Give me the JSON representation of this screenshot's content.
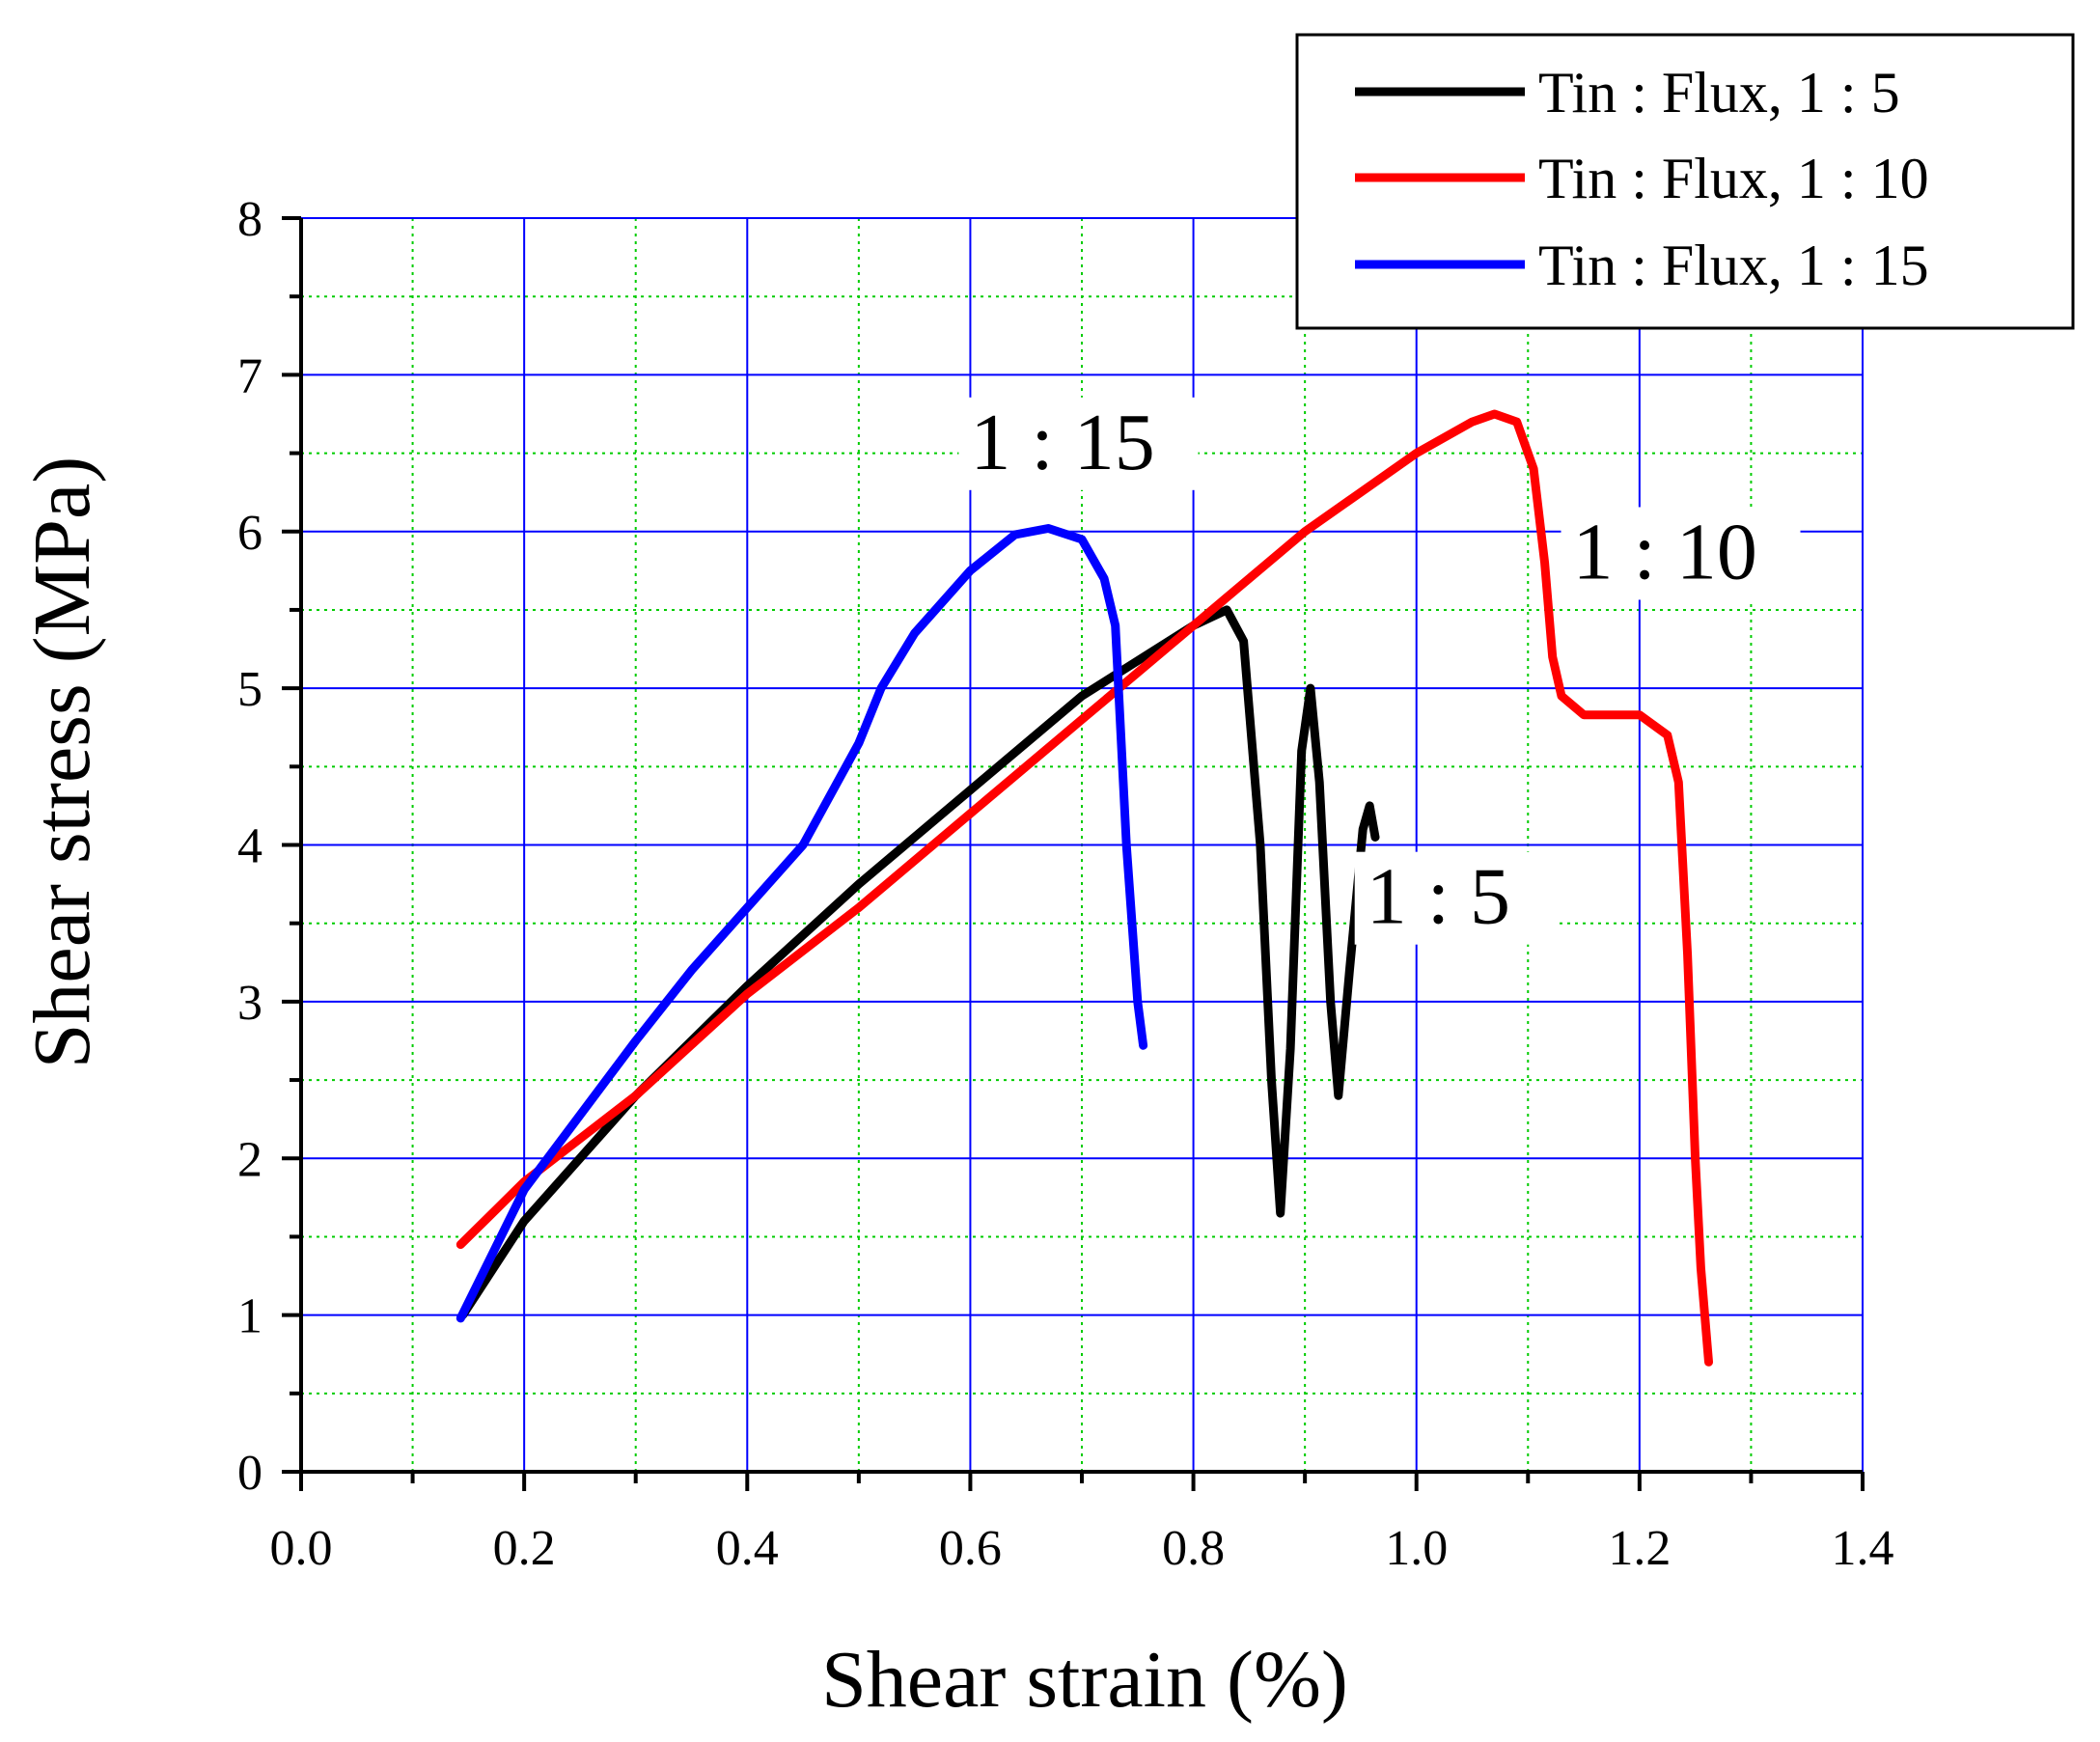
{
  "chart_data": {
    "type": "line",
    "title": "",
    "xlabel": "Shear strain (%)",
    "ylabel": "Shear stress (MPa)",
    "xlim": [
      0.0,
      1.4
    ],
    "ylim": [
      0,
      8
    ],
    "x_ticks": [
      0.0,
      0.2,
      0.4,
      0.6,
      0.8,
      1.0,
      1.2,
      1.4
    ],
    "x_tick_labels": [
      "0.0",
      "0.2",
      "0.4",
      "0.6",
      "0.8",
      "1.0",
      "1.2",
      "1.4"
    ],
    "y_ticks": [
      0,
      1,
      2,
      3,
      4,
      5,
      6,
      7,
      8
    ],
    "y_tick_labels": [
      "0",
      "1",
      "2",
      "3",
      "4",
      "5",
      "6",
      "7",
      "8"
    ],
    "grid": "major blue solid, minor green dotted",
    "legend_position": "top-right",
    "series": [
      {
        "name": "Tin : Flux, 1 : 5",
        "color": "#000000",
        "points": [
          [
            0.145,
            1.0
          ],
          [
            0.2,
            1.6
          ],
          [
            0.3,
            2.4
          ],
          [
            0.4,
            3.1
          ],
          [
            0.5,
            3.75
          ],
          [
            0.6,
            4.35
          ],
          [
            0.7,
            4.95
          ],
          [
            0.8,
            5.4
          ],
          [
            0.83,
            5.5
          ],
          [
            0.845,
            5.3
          ],
          [
            0.86,
            4.0
          ],
          [
            0.87,
            2.5
          ],
          [
            0.878,
            1.65
          ],
          [
            0.887,
            2.7
          ],
          [
            0.897,
            4.6
          ],
          [
            0.905,
            5.0
          ],
          [
            0.913,
            4.4
          ],
          [
            0.923,
            3.0
          ],
          [
            0.93,
            2.4
          ],
          [
            0.94,
            3.2
          ],
          [
            0.952,
            4.1
          ],
          [
            0.958,
            4.25
          ],
          [
            0.963,
            4.05
          ]
        ]
      },
      {
        "name": "Tin : Flux, 1 : 10",
        "color": "#ff0000",
        "points": [
          [
            0.143,
            1.45
          ],
          [
            0.2,
            1.85
          ],
          [
            0.3,
            2.4
          ],
          [
            0.4,
            3.05
          ],
          [
            0.5,
            3.6
          ],
          [
            0.6,
            4.2
          ],
          [
            0.7,
            4.8
          ],
          [
            0.8,
            5.4
          ],
          [
            0.9,
            6.0
          ],
          [
            1.0,
            6.5
          ],
          [
            1.05,
            6.7
          ],
          [
            1.07,
            6.75
          ],
          [
            1.09,
            6.7
          ],
          [
            1.105,
            6.4
          ],
          [
            1.115,
            5.8
          ],
          [
            1.122,
            5.2
          ],
          [
            1.13,
            4.95
          ],
          [
            1.15,
            4.83
          ],
          [
            1.2,
            4.83
          ],
          [
            1.225,
            4.7
          ],
          [
            1.235,
            4.4
          ],
          [
            1.243,
            3.3
          ],
          [
            1.25,
            2.0
          ],
          [
            1.255,
            1.3
          ],
          [
            1.262,
            0.7
          ]
        ]
      },
      {
        "name": "Tin : Flux, 1 : 15",
        "color": "#0000ff",
        "points": [
          [
            0.143,
            0.98
          ],
          [
            0.2,
            1.8
          ],
          [
            0.3,
            2.75
          ],
          [
            0.35,
            3.2
          ],
          [
            0.45,
            4.0
          ],
          [
            0.5,
            4.65
          ],
          [
            0.52,
            5.0
          ],
          [
            0.55,
            5.35
          ],
          [
            0.6,
            5.75
          ],
          [
            0.64,
            5.98
          ],
          [
            0.67,
            6.02
          ],
          [
            0.7,
            5.95
          ],
          [
            0.72,
            5.7
          ],
          [
            0.73,
            5.4
          ],
          [
            0.74,
            4.0
          ],
          [
            0.745,
            3.5
          ],
          [
            0.75,
            3.0
          ],
          [
            0.755,
            2.72
          ]
        ]
      }
    ],
    "annotations": [
      {
        "text": "1 : 15",
        "x": 0.6,
        "y": 6.4
      },
      {
        "text": "1 : 10",
        "x": 1.14,
        "y": 5.7
      },
      {
        "text": "1 : 5",
        "x": 0.955,
        "y": 3.5
      }
    ]
  }
}
